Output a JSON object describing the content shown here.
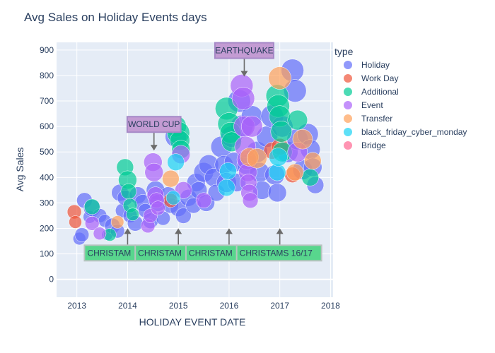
{
  "chart_data": {
    "type": "scatter",
    "title": "Avg Sales on Holiday Events days",
    "xlabel": "HOLIDAY EVENT DATE",
    "ylabel": "Avg Sales",
    "xlim": [
      2012.6,
      2018.05
    ],
    "ylim": [
      -70,
      930
    ],
    "x_ticks": [
      2013,
      2014,
      2015,
      2016,
      2017,
      2018
    ],
    "y_ticks": [
      0,
      100,
      200,
      300,
      400,
      500,
      600,
      700,
      800,
      900
    ],
    "grid": true,
    "legend": {
      "title": "type",
      "placement": "right"
    },
    "series": [
      {
        "name": "Holiday",
        "color": "#636efa",
        "points": [
          [
            2013.05,
            160,
            9
          ],
          [
            2013.1,
            175,
            10
          ],
          [
            2013.15,
            310,
            11
          ],
          [
            2013.25,
            245,
            9
          ],
          [
            2013.3,
            280,
            12
          ],
          [
            2013.45,
            250,
            10
          ],
          [
            2013.55,
            230,
            9
          ],
          [
            2013.6,
            175,
            8
          ],
          [
            2013.7,
            210,
            11
          ],
          [
            2013.8,
            190,
            10
          ],
          [
            2013.85,
            340,
            12
          ],
          [
            2013.9,
            270,
            10
          ],
          [
            2013.95,
            320,
            11
          ],
          [
            2014.05,
            250,
            10
          ],
          [
            2014.15,
            220,
            11
          ],
          [
            2014.2,
            330,
            12
          ],
          [
            2014.3,
            300,
            12
          ],
          [
            2014.35,
            270,
            10
          ],
          [
            2014.45,
            230,
            11
          ],
          [
            2014.55,
            350,
            13
          ],
          [
            2014.6,
            300,
            12
          ],
          [
            2014.7,
            240,
            10
          ],
          [
            2014.8,
            330,
            12
          ],
          [
            2014.85,
            290,
            11
          ],
          [
            2014.95,
            560,
            15
          ],
          [
            2015.0,
            280,
            12
          ],
          [
            2015.1,
            250,
            11
          ],
          [
            2015.2,
            320,
            12
          ],
          [
            2015.3,
            290,
            11
          ],
          [
            2015.35,
            380,
            13
          ],
          [
            2015.4,
            350,
            12
          ],
          [
            2015.5,
            420,
            14
          ],
          [
            2015.55,
            300,
            12
          ],
          [
            2015.6,
            450,
            14
          ],
          [
            2015.7,
            400,
            13
          ],
          [
            2015.75,
            340,
            12
          ],
          [
            2015.85,
            520,
            15
          ],
          [
            2015.9,
            450,
            13
          ],
          [
            2015.95,
            380,
            14
          ],
          [
            2016.05,
            560,
            15
          ],
          [
            2016.1,
            460,
            14
          ],
          [
            2016.15,
            380,
            13
          ],
          [
            2016.2,
            700,
            16
          ],
          [
            2016.25,
            600,
            16
          ],
          [
            2016.35,
            450,
            14
          ],
          [
            2016.45,
            640,
            15
          ],
          [
            2016.55,
            500,
            15
          ],
          [
            2016.6,
            420,
            14
          ],
          [
            2016.65,
            350,
            13
          ],
          [
            2016.75,
            560,
            15
          ],
          [
            2016.85,
            640,
            16
          ],
          [
            2016.9,
            410,
            14
          ],
          [
            2016.95,
            340,
            13
          ],
          [
            2017.05,
            600,
            15
          ],
          [
            2017.15,
            500,
            15
          ],
          [
            2017.25,
            820,
            16
          ],
          [
            2017.3,
            740,
            16
          ],
          [
            2017.35,
            550,
            15
          ],
          [
            2017.45,
            430,
            14
          ],
          [
            2017.55,
            570,
            15
          ],
          [
            2017.6,
            510,
            14
          ],
          [
            2017.65,
            440,
            13
          ],
          [
            2017.7,
            370,
            12
          ]
        ]
      },
      {
        "name": "Work Day",
        "color": "#ef553b",
        "points": [
          [
            2012.95,
            265,
            10
          ],
          [
            2012.97,
            225,
            9
          ],
          [
            2014.85,
            310,
            10
          ],
          [
            2016.85,
            505,
            12
          ],
          [
            2017.0,
            520,
            12
          ],
          [
            2017.25,
            410,
            11
          ]
        ]
      },
      {
        "name": "Additional",
        "color": "#00cc96",
        "points": [
          [
            2013.3,
            285,
            11
          ],
          [
            2013.65,
            175,
            9
          ],
          [
            2013.95,
            440,
            12
          ],
          [
            2014.0,
            390,
            13
          ],
          [
            2014.02,
            345,
            11
          ],
          [
            2014.05,
            290,
            10
          ],
          [
            2014.1,
            255,
            9
          ],
          [
            2014.95,
            600,
            15
          ],
          [
            2015.0,
            575,
            16
          ],
          [
            2015.03,
            545,
            14
          ],
          [
            2015.05,
            510,
            13
          ],
          [
            2015.95,
            670,
            16
          ],
          [
            2016.0,
            610,
            16
          ],
          [
            2016.03,
            575,
            15
          ],
          [
            2016.05,
            540,
            14
          ],
          [
            2016.95,
            720,
            16
          ],
          [
            2016.97,
            680,
            16
          ],
          [
            2017.0,
            640,
            15
          ],
          [
            2017.03,
            580,
            15
          ],
          [
            2017.05,
            500,
            14
          ],
          [
            2017.35,
            625,
            14
          ],
          [
            2017.6,
            400,
            12
          ]
        ]
      },
      {
        "name": "Event",
        "color": "#ab63fa",
        "points": [
          [
            2013.3,
            220,
            10
          ],
          [
            2013.45,
            180,
            9
          ],
          [
            2014.4,
            210,
            10
          ],
          [
            2014.45,
            250,
            10
          ],
          [
            2014.5,
            460,
            13
          ],
          [
            2014.52,
            420,
            13
          ],
          [
            2014.55,
            330,
            12
          ],
          [
            2014.57,
            310,
            11
          ],
          [
            2014.6,
            280,
            10
          ],
          [
            2015.05,
            490,
            13
          ],
          [
            2015.1,
            350,
            12
          ],
          [
            2015.5,
            310,
            11
          ],
          [
            2016.25,
            760,
            16
          ],
          [
            2016.28,
            710,
            16
          ],
          [
            2016.3,
            600,
            15
          ],
          [
            2016.32,
            520,
            15
          ],
          [
            2016.35,
            470,
            14
          ],
          [
            2016.37,
            420,
            13
          ],
          [
            2016.38,
            380,
            12
          ],
          [
            2016.4,
            340,
            12
          ],
          [
            2016.42,
            310,
            11
          ],
          [
            2016.45,
            600,
            15
          ],
          [
            2017.35,
            500,
            14
          ]
        ]
      },
      {
        "name": "Transfer",
        "color": "#ffa15a",
        "points": [
          [
            2013.8,
            225,
            9
          ],
          [
            2014.85,
            395,
            12
          ],
          [
            2016.4,
            480,
            13
          ],
          [
            2016.55,
            475,
            14
          ],
          [
            2017.0,
            790,
            16
          ],
          [
            2017.3,
            420,
            12
          ],
          [
            2017.45,
            550,
            14
          ],
          [
            2017.65,
            465,
            12
          ]
        ]
      },
      {
        "name": "black_friday_cyber_monday",
        "color": "#19d3f3",
        "points": [
          [
            2014.9,
            320,
            10
          ],
          [
            2014.95,
            460,
            12
          ],
          [
            2015.95,
            360,
            12
          ],
          [
            2015.98,
            425,
            12
          ],
          [
            2016.95,
            420,
            12
          ],
          [
            2016.97,
            480,
            13
          ]
        ]
      },
      {
        "name": "Bridge",
        "color": "#ff6692",
        "points": []
      }
    ],
    "annotations": [
      {
        "text": "WORLD CUP",
        "x": 2014.52,
        "y": 500,
        "style": "purple"
      },
      {
        "text": "EARTHQUAKE",
        "x": 2016.3,
        "y": 790,
        "style": "purple"
      },
      {
        "text": "CHRISTAM",
        "x": 2014.0,
        "y": 195,
        "style": "green"
      },
      {
        "text": "CHRISTAM",
        "x": 2015.0,
        "y": 195,
        "style": "green"
      },
      {
        "text": "CHRISTAM",
        "x": 2016.0,
        "y": 195,
        "style": "green"
      },
      {
        "text": "CHRISTAMS 16/17",
        "x": 2017.0,
        "y": 195,
        "style": "green"
      }
    ]
  }
}
